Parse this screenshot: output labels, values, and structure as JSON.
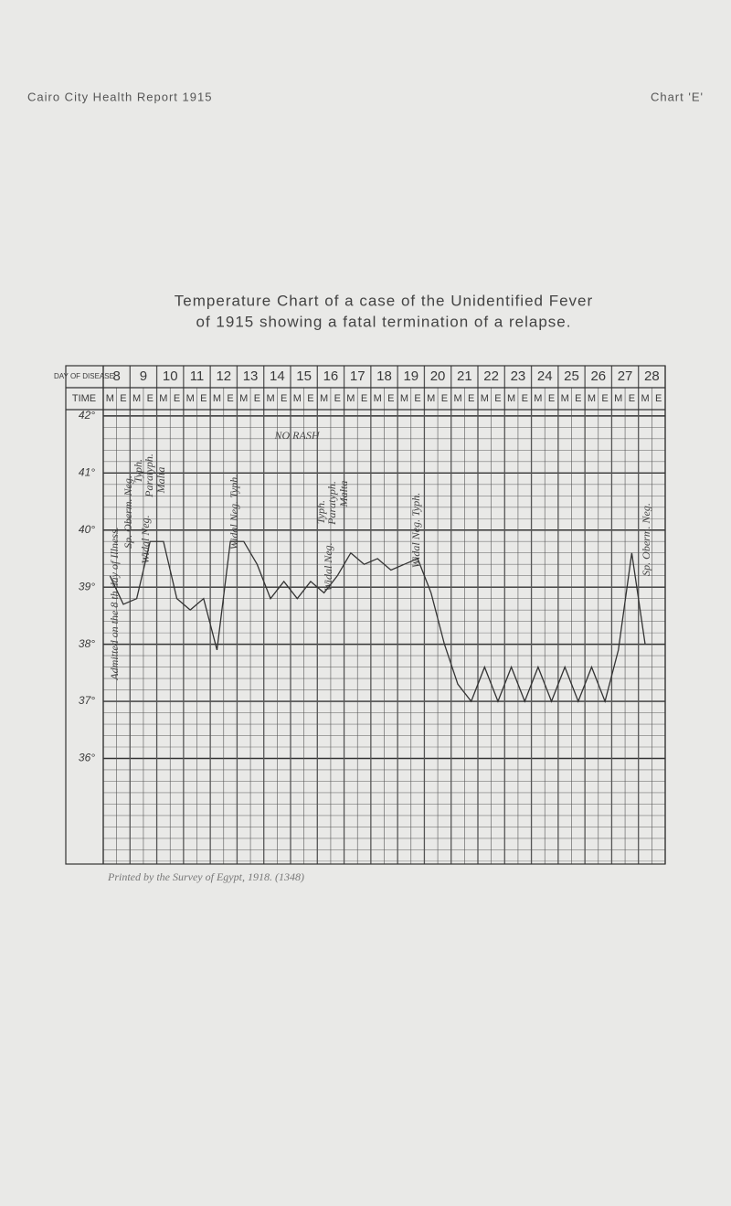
{
  "header": {
    "left": "Cairo City Health Report 1915",
    "right": "Chart 'E'"
  },
  "chart_data": {
    "type": "line",
    "title": "Temperature Chart of a case of the Unidentified Fever",
    "subtitle": "of 1915 showing a fatal termination of a relapse.",
    "row_labels": [
      "DAY OF DISEASE",
      "TIME"
    ],
    "days": [
      "8",
      "9",
      "10",
      "11",
      "12",
      "13",
      "14",
      "15",
      "16",
      "17",
      "18",
      "19",
      "20",
      "21",
      "22",
      "23",
      "24",
      "25",
      "26",
      "27",
      "28"
    ],
    "categories": [
      "M",
      "E",
      "M",
      "E",
      "M",
      "E",
      "M",
      "E",
      "M",
      "E",
      "M",
      "E",
      "M",
      "E",
      "M",
      "E",
      "M",
      "E",
      "M",
      "E",
      "M",
      "E",
      "M",
      "E",
      "M",
      "E",
      "M",
      "E",
      "M",
      "E",
      "M",
      "E",
      "M",
      "E",
      "M",
      "E",
      "M",
      "E",
      "M",
      "E",
      "M",
      "E"
    ],
    "values": [
      39.2,
      38.7,
      38.8,
      39.8,
      39.8,
      38.8,
      38.6,
      38.8,
      37.9,
      39.8,
      39.8,
      39.4,
      38.8,
      39.1,
      38.8,
      39.1,
      38.9,
      39.2,
      39.6,
      39.4,
      39.5,
      39.3,
      39.4,
      39.5,
      38.9,
      38.0,
      37.3,
      37.0,
      37.6,
      37.0,
      37.6,
      37.0,
      37.6,
      37.0,
      37.6,
      37.0,
      37.6,
      37.0,
      37.9,
      39.6,
      38.0,
      null
    ],
    "color": "#333333",
    "ylim": [
      34.15,
      42.11
    ],
    "yticks": [
      {
        "value": 36,
        "label": "36°"
      },
      {
        "value": 37,
        "label": "37°"
      },
      {
        "value": 38,
        "label": "38°"
      },
      {
        "value": 39,
        "label": "39°"
      },
      {
        "value": 40,
        "label": "40°"
      },
      {
        "value": 41,
        "label": "41°"
      },
      {
        "value": 42,
        "label": "42°"
      }
    ],
    "grid": true,
    "annotations": [
      "Admitted on the 8 th day of Illness.",
      "Sp. Oberm. Neg.",
      "Typh.",
      "Paratyph.",
      "Malta",
      "Widal Neg.",
      "Widal Neg. Typh.",
      "NO RASH",
      "Typh.",
      "Paratyph.",
      "Malta",
      "Widal Neg.",
      "Widal Neg. Typh.",
      "Sp. Oberm. Neg."
    ],
    "footnote": "Printed by the Survey of Egypt, 1918. (1348)"
  }
}
